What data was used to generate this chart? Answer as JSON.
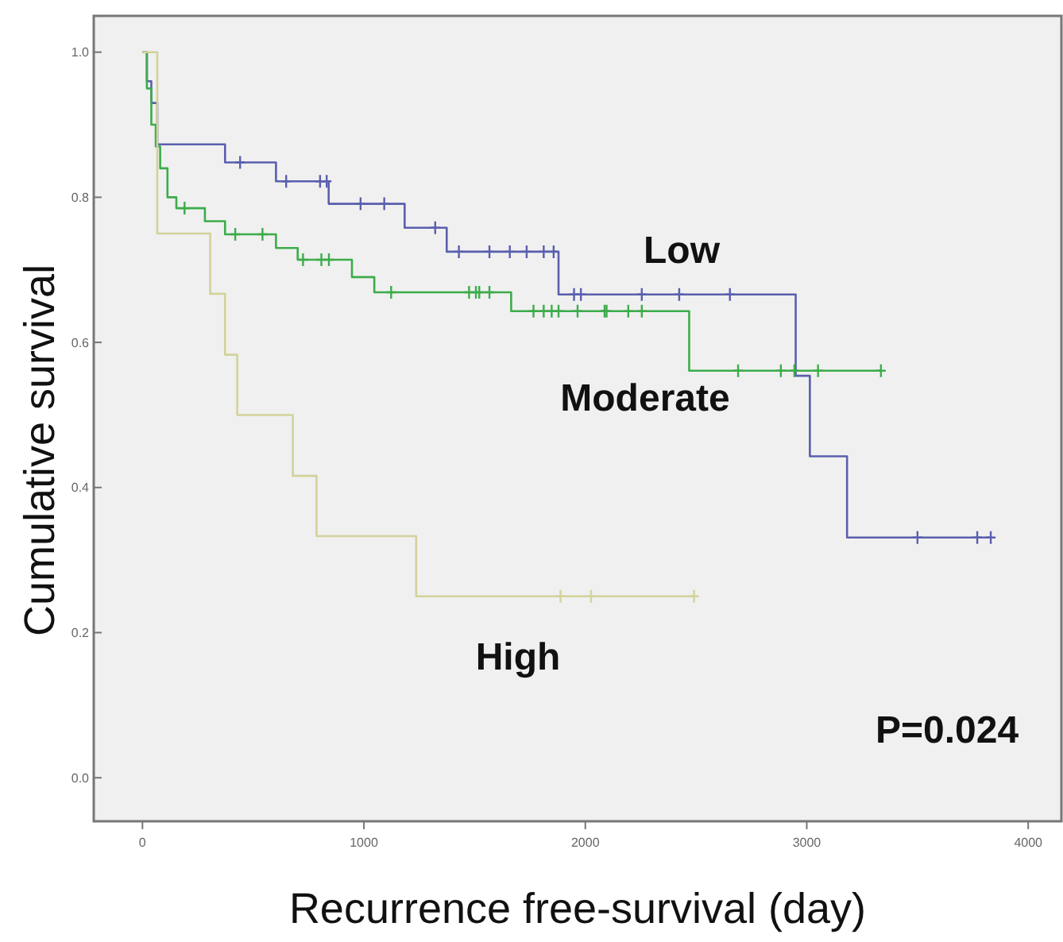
{
  "chart_data": {
    "type": "step",
    "xlabel": "Recurrence free-survival (day)",
    "ylabel": "Cumulative survival",
    "xlim": [
      -220,
      4150
    ],
    "ylim": [
      -0.06,
      1.05
    ],
    "xticks": [
      0,
      1000,
      2000,
      3000,
      4000
    ],
    "yticks": [
      {
        "value": 0,
        "label": "0.0"
      },
      {
        "value": 0.2,
        "label": "0.2"
      },
      {
        "value": 0.4,
        "label": "0.4"
      },
      {
        "value": 0.6,
        "label": "0.6"
      },
      {
        "value": 0.8,
        "label": "0.8"
      },
      {
        "value": 1,
        "label": "1.0"
      }
    ],
    "grid": false,
    "line_style": "solid",
    "series": [
      {
        "name": "Low",
        "color": "#5a5fae",
        "x": [
          0,
          20,
          40,
          67,
          373,
          603,
          841,
          1184,
          1374,
          1879,
          2950,
          3014,
          3182,
          3837
        ],
        "values": [
          1,
          0.96,
          0.93,
          0.873,
          0.848,
          0.822,
          0.791,
          0.758,
          0.725,
          0.666,
          0.554,
          0.443,
          0.331,
          0.331
        ]
      },
      {
        "name": "Moderate",
        "color": "#3cac4a",
        "x": [
          0,
          20,
          40,
          60,
          80,
          113,
          153,
          282,
          373,
          603,
          701,
          946,
          1047,
          1665,
          2469,
          3335
        ],
        "values": [
          1,
          0.95,
          0.9,
          0.87,
          0.84,
          0.8,
          0.785,
          0.767,
          0.749,
          0.73,
          0.714,
          0.69,
          0.669,
          0.643,
          0.561,
          0.561
        ]
      },
      {
        "name": "High",
        "color": "#d2d29a",
        "x": [
          0,
          67,
          306,
          373,
          428,
          679,
          786,
          1236,
          2491
        ],
        "values": [
          1,
          0.75,
          0.667,
          0.583,
          0.5,
          0.416,
          0.333,
          0.25,
          0.25
        ]
      },
      {
        "type": "scatter",
        "color": "#5a5fae",
        "marker": "cross",
        "x": [
          441,
          649,
          802,
          832,
          985,
          1092,
          1322,
          1429,
          1567,
          1659,
          1735,
          1812,
          1857,
          1949,
          1980,
          2255,
          2424,
          2653,
          3500,
          3770,
          3831
        ],
        "values": [
          0.848,
          0.822,
          0.822,
          0.822,
          0.791,
          0.791,
          0.758,
          0.725,
          0.725,
          0.725,
          0.725,
          0.725,
          0.725,
          0.666,
          0.666,
          0.666,
          0.666,
          0.666,
          0.331,
          0.331,
          0.331
        ]
      },
      {
        "type": "scatter",
        "color": "#3cac4a",
        "marker": "cross",
        "x": [
          190,
          419,
          542,
          725,
          808,
          842,
          1123,
          1475,
          1506,
          1521,
          1567,
          1766,
          1812,
          1848,
          1879,
          1965,
          2087,
          2096,
          2194,
          2255,
          2690,
          2883,
          2944,
          3051,
          3335
        ],
        "values": [
          0.785,
          0.749,
          0.749,
          0.714,
          0.714,
          0.714,
          0.669,
          0.669,
          0.669,
          0.669,
          0.669,
          0.643,
          0.643,
          0.643,
          0.643,
          0.643,
          0.643,
          0.643,
          0.643,
          0.643,
          0.561,
          0.561,
          0.561,
          0.561,
          0.561
        ]
      },
      {
        "type": "scatter",
        "color": "#d2d29a",
        "marker": "cross",
        "x": [
          1888,
          2026,
          2491
        ],
        "values": [
          0.25,
          0.25,
          0.25
        ]
      }
    ],
    "annotations": [
      "P=0.024"
    ]
  }
}
